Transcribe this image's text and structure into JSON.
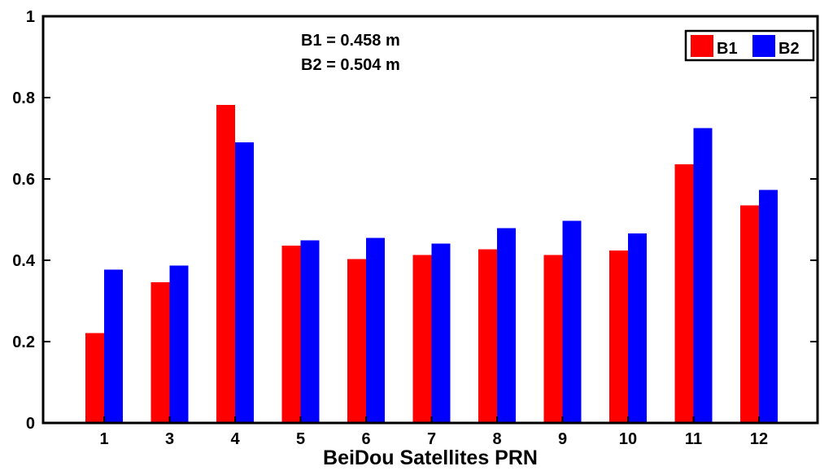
{
  "chart_data": {
    "type": "bar",
    "categories": [
      "1",
      "3",
      "4",
      "5",
      "6",
      "7",
      "8",
      "9",
      "10",
      "11",
      "12"
    ],
    "series": [
      {
        "name": "B1",
        "color": "#ff0000",
        "values": [
          0.221,
          0.346,
          0.782,
          0.436,
          0.403,
          0.413,
          0.427,
          0.413,
          0.424,
          0.636,
          0.535
        ]
      },
      {
        "name": "B2",
        "color": "#0000ff",
        "values": [
          0.377,
          0.387,
          0.69,
          0.449,
          0.455,
          0.441,
          0.479,
          0.497,
          0.466,
          0.725,
          0.573
        ]
      }
    ],
    "xlabel": "BeiDou Satellites PRN",
    "ylabel": "",
    "ylim": [
      0,
      1
    ],
    "yticks": [
      "0",
      "0.2",
      "0.4",
      "0.6",
      "0.8",
      "1"
    ],
    "annotations": [
      "B1 = 0.458 m",
      "B2 = 0.504 m"
    ],
    "legend": "top-right",
    "grid": false
  }
}
